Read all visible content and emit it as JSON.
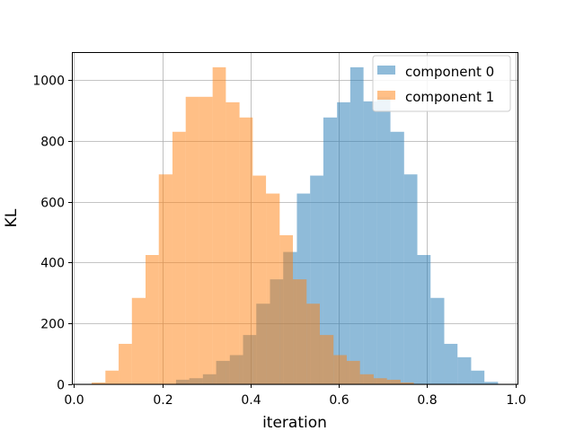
{
  "chart_data": {
    "type": "histogram",
    "title": "",
    "xlabel": "iteration",
    "ylabel": "KL",
    "xlim": [
      -0.005,
      1.005
    ],
    "ylim": [
      0,
      1092
    ],
    "xticks": [
      0.0,
      0.2,
      0.4,
      0.6,
      0.8,
      1.0
    ],
    "xtick_labels": [
      "0.0",
      "0.2",
      "0.4",
      "0.6",
      "0.8",
      "1.0"
    ],
    "yticks": [
      0,
      200,
      400,
      600,
      800,
      1000
    ],
    "ytick_labels": [
      "0",
      "200",
      "400",
      "600",
      "800",
      "1000"
    ],
    "grid": true,
    "legend_position": "top-right",
    "opacity": 0.5,
    "series": [
      {
        "name": "component 0",
        "color": "#1f77b4",
        "bin_width": 0.0304,
        "bins": [
          [
            0.231,
            0.261,
            15
          ],
          [
            0.261,
            0.292,
            20
          ],
          [
            0.292,
            0.322,
            33
          ],
          [
            0.322,
            0.353,
            77
          ],
          [
            0.353,
            0.383,
            96
          ],
          [
            0.383,
            0.413,
            162
          ],
          [
            0.413,
            0.444,
            265
          ],
          [
            0.444,
            0.474,
            345
          ],
          [
            0.474,
            0.505,
            435
          ],
          [
            0.505,
            0.535,
            627
          ],
          [
            0.535,
            0.565,
            686
          ],
          [
            0.565,
            0.596,
            877
          ],
          [
            0.596,
            0.626,
            927
          ],
          [
            0.626,
            0.656,
            1042
          ],
          [
            0.656,
            0.687,
            930
          ],
          [
            0.687,
            0.717,
            945
          ],
          [
            0.717,
            0.748,
            830
          ],
          [
            0.748,
            0.778,
            690
          ],
          [
            0.778,
            0.808,
            425
          ],
          [
            0.808,
            0.839,
            284
          ],
          [
            0.839,
            0.869,
            133
          ],
          [
            0.869,
            0.9,
            89
          ],
          [
            0.9,
            0.93,
            45
          ],
          [
            0.93,
            0.961,
            8
          ]
        ]
      },
      {
        "name": "component 1",
        "color": "#ff7f0e",
        "bin_width": 0.0304,
        "bins": [
          [
            0.04,
            0.071,
            6
          ],
          [
            0.071,
            0.101,
            45
          ],
          [
            0.101,
            0.131,
            133
          ],
          [
            0.131,
            0.162,
            284
          ],
          [
            0.162,
            0.192,
            425
          ],
          [
            0.192,
            0.223,
            690
          ],
          [
            0.223,
            0.253,
            830
          ],
          [
            0.253,
            0.283,
            945
          ],
          [
            0.283,
            0.314,
            945
          ],
          [
            0.314,
            0.344,
            1042
          ],
          [
            0.344,
            0.375,
            927
          ],
          [
            0.375,
            0.405,
            877
          ],
          [
            0.405,
            0.435,
            686
          ],
          [
            0.435,
            0.466,
            627
          ],
          [
            0.466,
            0.496,
            490
          ],
          [
            0.496,
            0.527,
            345
          ],
          [
            0.527,
            0.557,
            265
          ],
          [
            0.557,
            0.588,
            162
          ],
          [
            0.588,
            0.618,
            96
          ],
          [
            0.618,
            0.648,
            77
          ],
          [
            0.648,
            0.679,
            33
          ],
          [
            0.679,
            0.709,
            20
          ],
          [
            0.709,
            0.74,
            15
          ],
          [
            0.74,
            0.77,
            6
          ]
        ]
      }
    ]
  }
}
